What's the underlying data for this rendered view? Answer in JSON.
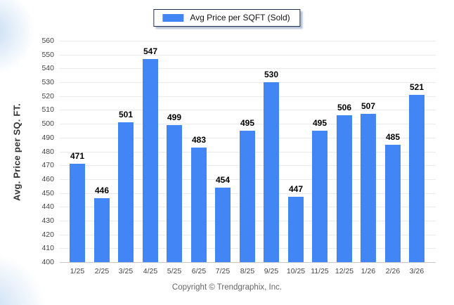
{
  "page": {
    "footer": "Copyright © Trendgraphix, Inc."
  },
  "chart_data": {
    "type": "bar",
    "title": "",
    "categories": [
      "1/25",
      "2/25",
      "3/25",
      "4/25",
      "5/25",
      "6/25",
      "7/25",
      "8/25",
      "9/25",
      "10/25",
      "11/25",
      "12/25",
      "1/26",
      "2/26",
      "3/26"
    ],
    "series": [
      {
        "name": "Avg Price per SQFT (Sold)",
        "values": [
          471,
          446,
          501,
          547,
          499,
          483,
          454,
          495,
          530,
          447,
          495,
          506,
          507,
          485,
          521
        ]
      }
    ],
    "xlabel": "",
    "ylabel": "Avg. Price per SQ. FT.",
    "ylim": [
      400,
      560
    ],
    "ytick_step": 10,
    "grid": true,
    "value_labels": true,
    "legend_position": "top-center",
    "bar_color": "#4285f4"
  }
}
